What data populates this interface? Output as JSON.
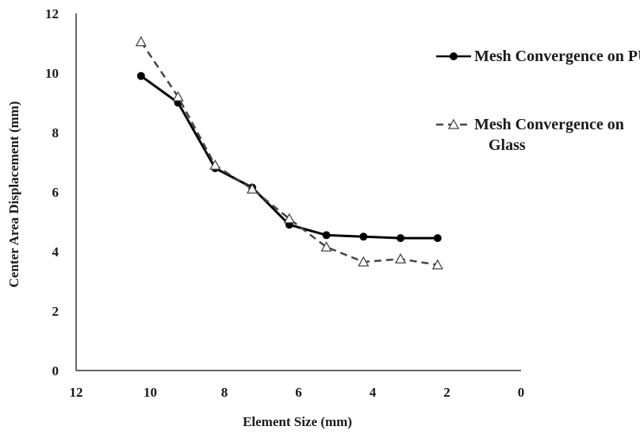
{
  "chart_data": {
    "type": "line",
    "x_label": "Element Size (mm)",
    "y_label": "Center Area Displacement (mm)",
    "xlim": [
      12,
      0
    ],
    "xticks": [
      12,
      10,
      8,
      6,
      4,
      2,
      0
    ],
    "ylim": [
      0,
      12
    ],
    "yticks": [
      0,
      2,
      4,
      6,
      8,
      10,
      12
    ],
    "grid": false,
    "legend": "upper right",
    "series": [
      {
        "name": "Mesh Convergence on PU",
        "color": "#000000",
        "line_style": "solid",
        "marker": "circle",
        "x": [
          10.25,
          9.25,
          8.25,
          7.25,
          6.25,
          5.25,
          4.25,
          3.25,
          2.25
        ],
        "values": [
          9.9,
          9.0,
          6.8,
          6.15,
          4.9,
          4.55,
          4.5,
          4.45,
          4.45
        ]
      },
      {
        "name": "Mesh Convergence on Glass",
        "color": "#444444",
        "line_style": "dashed",
        "marker": "triangle-open",
        "x": [
          10.25,
          9.25,
          8.25,
          7.25,
          6.25,
          5.25,
          4.25,
          3.25,
          2.25
        ],
        "values": [
          11.05,
          9.2,
          6.9,
          6.1,
          5.1,
          4.15,
          3.65,
          3.75,
          3.55
        ]
      }
    ]
  }
}
